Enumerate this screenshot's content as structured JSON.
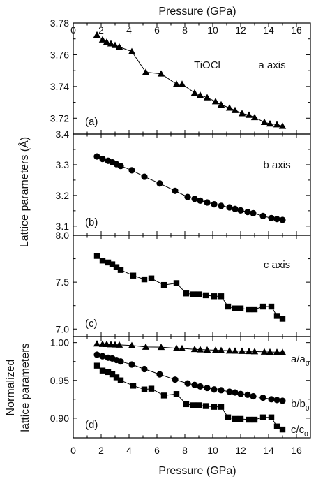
{
  "chart_data": [
    {
      "panel": "(a)",
      "type": "line",
      "marker": "triangle",
      "annotation": "TiOCl",
      "series_label": "a axis",
      "x": [
        1.7,
        2.1,
        2.4,
        2.7,
        3.0,
        3.3,
        4.2,
        5.2,
        6.3,
        7.4,
        7.8,
        8.7,
        9.1,
        9.6,
        10.2,
        10.6,
        11.2,
        11.6,
        12.1,
        12.6,
        13.0,
        13.7,
        14.1,
        14.6,
        15.0
      ],
      "y": [
        3.7725,
        3.7695,
        3.768,
        3.767,
        3.766,
        3.765,
        3.762,
        3.749,
        3.748,
        3.7415,
        3.7415,
        3.736,
        3.7345,
        3.733,
        3.7305,
        3.7285,
        3.7265,
        3.725,
        3.723,
        3.722,
        3.7205,
        3.7175,
        3.7165,
        3.716,
        3.715
      ],
      "ylim": [
        3.71,
        3.78
      ],
      "yticks": [
        "3.72",
        "3.74",
        "3.76",
        "3.78"
      ]
    },
    {
      "panel": "(b)",
      "type": "line",
      "marker": "circle",
      "series_label": "b axis",
      "x": [
        1.7,
        2.1,
        2.5,
        2.8,
        3.1,
        3.4,
        4.2,
        5.1,
        6.2,
        7.3,
        8.2,
        8.7,
        9.1,
        9.6,
        10.1,
        10.6,
        11.2,
        11.6,
        12.0,
        12.5,
        12.9,
        13.6,
        14.2,
        14.6,
        15.0
      ],
      "y": [
        3.327,
        3.319,
        3.313,
        3.308,
        3.302,
        3.296,
        3.282,
        3.261,
        3.239,
        3.215,
        3.195,
        3.189,
        3.183,
        3.177,
        3.171,
        3.166,
        3.161,
        3.156,
        3.151,
        3.146,
        3.142,
        3.133,
        3.126,
        3.123,
        3.12
      ],
      "ylim": [
        3.07,
        3.4
      ],
      "yticks": [
        "3.1",
        "3.2",
        "3.3",
        "3.4"
      ]
    },
    {
      "panel": "(c)",
      "type": "line",
      "marker": "square",
      "series_label": "c axis",
      "x": [
        1.7,
        2.1,
        2.5,
        2.8,
        3.1,
        3.4,
        4.3,
        5.1,
        5.6,
        6.5,
        7.4,
        8.1,
        8.6,
        9.0,
        9.5,
        10.1,
        10.6,
        11.1,
        11.6,
        12.0,
        12.6,
        13.0,
        13.6,
        14.2,
        14.6,
        15.0
      ],
      "y": [
        7.78,
        7.73,
        7.71,
        7.69,
        7.66,
        7.63,
        7.57,
        7.53,
        7.54,
        7.47,
        7.49,
        7.38,
        7.37,
        7.37,
        7.36,
        7.35,
        7.35,
        7.24,
        7.22,
        7.22,
        7.21,
        7.21,
        7.24,
        7.24,
        7.14,
        7.11
      ],
      "ylim": [
        6.92,
        8.0
      ],
      "yticks": [
        "7.0",
        "7.5",
        "8.0"
      ]
    },
    {
      "panel": "(d)",
      "type": "line",
      "ylabel_lines": [
        "Normalized",
        "lattice parameters"
      ],
      "ylim": [
        0.874,
        1.008
      ],
      "yticks": [
        "0.90",
        "0.95",
        "1.00"
      ],
      "series": [
        {
          "name": "a/a",
          "sub": "0",
          "marker": "triangle",
          "x": [
            1.7,
            2.1,
            2.4,
            2.7,
            3.0,
            3.3,
            4.2,
            5.2,
            6.3,
            7.4,
            7.8,
            8.7,
            9.1,
            9.6,
            10.2,
            10.6,
            11.2,
            11.6,
            12.1,
            12.6,
            13.0,
            13.7,
            14.1,
            14.6,
            15.0
          ],
          "y": [
            0.9985,
            0.998,
            0.9978,
            0.9975,
            0.9972,
            0.997,
            0.9962,
            0.9942,
            0.994,
            0.9925,
            0.9923,
            0.9912,
            0.9908,
            0.9904,
            0.99,
            0.9897,
            0.9892,
            0.989,
            0.9887,
            0.9885,
            0.9882,
            0.9878,
            0.9876,
            0.9874,
            0.9872
          ]
        },
        {
          "name": "b/b",
          "sub": "0",
          "marker": "circle",
          "x": [
            1.7,
            2.1,
            2.5,
            2.8,
            3.1,
            3.4,
            4.2,
            5.1,
            6.2,
            7.3,
            8.2,
            8.7,
            9.1,
            9.6,
            10.1,
            10.6,
            11.2,
            11.6,
            12.0,
            12.5,
            12.9,
            13.6,
            14.2,
            14.6,
            15.0
          ],
          "y": [
            0.984,
            0.982,
            0.98,
            0.979,
            0.977,
            0.975,
            0.971,
            0.965,
            0.958,
            0.951,
            0.946,
            0.944,
            0.942,
            0.94,
            0.938,
            0.937,
            0.935,
            0.934,
            0.932,
            0.931,
            0.929,
            0.927,
            0.925,
            0.924,
            0.923
          ]
        },
        {
          "name": "c/c",
          "sub": "0",
          "marker": "square",
          "x": [
            1.7,
            2.1,
            2.5,
            2.8,
            3.1,
            3.4,
            4.3,
            5.1,
            5.6,
            6.5,
            7.4,
            8.1,
            8.6,
            9.0,
            9.5,
            10.1,
            10.6,
            11.1,
            11.6,
            12.0,
            12.6,
            13.0,
            13.6,
            14.2,
            14.6,
            15.0
          ],
          "y": [
            0.9695,
            0.963,
            0.961,
            0.958,
            0.954,
            0.95,
            0.943,
            0.938,
            0.939,
            0.93,
            0.932,
            0.9185,
            0.917,
            0.917,
            0.916,
            0.915,
            0.915,
            0.901,
            0.899,
            0.899,
            0.898,
            0.898,
            0.901,
            0.901,
            0.889,
            0.885
          ]
        }
      ]
    }
  ],
  "axes": {
    "x_title": "Pressure (GPa)",
    "x_top_title": "Pressure (GPa)",
    "xlim": [
      0,
      17
    ],
    "xticks": [
      "0",
      "2",
      "4",
      "6",
      "8",
      "10",
      "12",
      "14",
      "16"
    ],
    "shared_ylabel": "Lattice parameters (Å)"
  }
}
